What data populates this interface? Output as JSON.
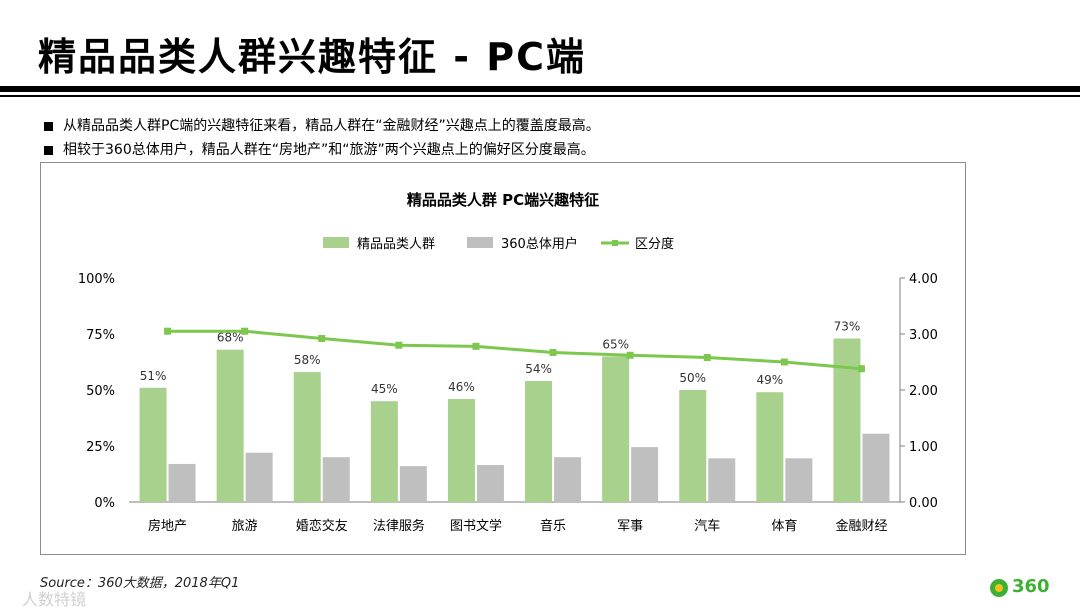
{
  "slide": {
    "title": "精品品类人群兴趣特征 - PC端",
    "bullets": [
      "从精品品类人群PC端的兴趣特征来看，精品人群在“金融财经”兴趣点上的覆盖度最高。",
      "相较于360总体用户，精品人群在“房地产”和“旅游”两个兴趣点上的偏好区分度最高。"
    ],
    "source": "Source：360大数据，2018年Q1",
    "watermark": "人数特镜",
    "logo_text": "360"
  },
  "colors": {
    "green_bar": "#a9d18e",
    "gray_bar": "#bfbfbf",
    "line": "#7cc84e"
  },
  "chart_data": {
    "type": "bar",
    "title": "精品品类人群 PC端兴趣特征",
    "categories": [
      "房地产",
      "旅游",
      "婚恋交友",
      "法律服务",
      "图书文学",
      "音乐",
      "军事",
      "汽车",
      "体育",
      "金融财经"
    ],
    "series": [
      {
        "name": "精品品类人群",
        "kind": "bar",
        "axis": "left",
        "values": [
          51,
          68,
          58,
          45,
          46,
          54,
          65,
          50,
          49,
          73
        ],
        "labels": [
          "51%",
          "68%",
          "58%",
          "45%",
          "46%",
          "54%",
          "65%",
          "50%",
          "49%",
          "73%"
        ]
      },
      {
        "name": "360总体用户",
        "kind": "bar",
        "axis": "left",
        "values": [
          17,
          22,
          20,
          16,
          16.5,
          20,
          24.5,
          19.5,
          19.5,
          30.5
        ]
      },
      {
        "name": "区分度",
        "kind": "line",
        "axis": "right",
        "values": [
          3.05,
          3.05,
          2.92,
          2.8,
          2.78,
          2.67,
          2.62,
          2.58,
          2.5,
          2.38
        ]
      }
    ],
    "y_left": {
      "ticks": [
        "100%",
        "75%",
        "50%",
        "25%",
        "0%"
      ],
      "lim": [
        0,
        100
      ]
    },
    "y_right": {
      "ticks": [
        "4.00",
        "3.00",
        "2.00",
        "1.00",
        "0.00"
      ],
      "lim": [
        0,
        4
      ]
    },
    "legend": "top",
    "grid": false
  }
}
